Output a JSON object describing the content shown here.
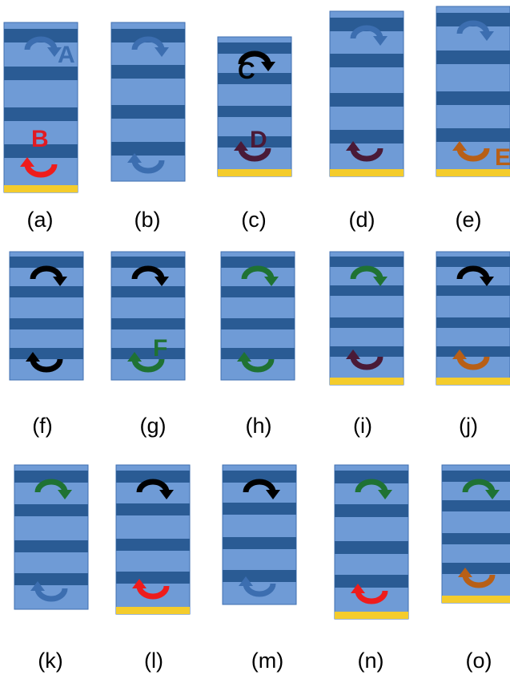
{
  "colors": {
    "light": "#6f9bd6",
    "dark": "#2a5b94",
    "border": "#3f6fb0",
    "substrate": "#f4cc2c",
    "arrow_blue": "#3c6eb0",
    "arrow_red": "#ee1c1c",
    "arrow_black": "#000000",
    "arrow_purple": "#4a1a37",
    "arrow_orange": "#b85f16",
    "arrow_green": "#1f7233",
    "letter_A": "#3c6eb0",
    "letter_B": "#e01b23",
    "letter_C": "#000000",
    "letter_D": "#4a1a37",
    "letter_E": "#b85f16",
    "letter_F": "#1f7233"
  },
  "panels": [
    {
      "caption": "(a)",
      "substrate": true,
      "top_arrow": "blue",
      "bottom_arrow": "red",
      "top_letter": "A",
      "bottom_letter": "B"
    },
    {
      "caption": "(b)",
      "substrate": false,
      "top_arrow": "blue",
      "bottom_arrow": "blue",
      "top_letter": "",
      "bottom_letter": ""
    },
    {
      "caption": "(c)",
      "substrate": true,
      "top_arrow": "black",
      "bottom_arrow": "purple",
      "top_letter": "C",
      "bottom_letter": "D"
    },
    {
      "caption": "(d)",
      "substrate": true,
      "top_arrow": "blue",
      "bottom_arrow": "purple",
      "top_letter": "",
      "bottom_letter": ""
    },
    {
      "caption": "(e)",
      "substrate": true,
      "top_arrow": "blue",
      "bottom_arrow": "orange",
      "top_letter": "",
      "bottom_letter": "E"
    },
    {
      "caption": "(f)",
      "substrate": false,
      "top_arrow": "black",
      "bottom_arrow": "black",
      "top_letter": "",
      "bottom_letter": ""
    },
    {
      "caption": "(g)",
      "substrate": false,
      "top_arrow": "black",
      "bottom_arrow": "green",
      "top_letter": "",
      "bottom_letter": "F"
    },
    {
      "caption": "(h)",
      "substrate": false,
      "top_arrow": "green",
      "bottom_arrow": "green",
      "top_letter": "",
      "bottom_letter": ""
    },
    {
      "caption": "(i)",
      "substrate": true,
      "top_arrow": "green",
      "bottom_arrow": "purple",
      "top_letter": "",
      "bottom_letter": ""
    },
    {
      "caption": "(j)",
      "substrate": true,
      "top_arrow": "black",
      "bottom_arrow": "orange",
      "top_letter": "",
      "bottom_letter": ""
    },
    {
      "caption": "(k)",
      "substrate": false,
      "top_arrow": "green",
      "bottom_arrow": "blue",
      "top_letter": "",
      "bottom_letter": ""
    },
    {
      "caption": "(l)",
      "substrate": true,
      "top_arrow": "black",
      "bottom_arrow": "red",
      "top_letter": "",
      "bottom_letter": ""
    },
    {
      "caption": "(m)",
      "substrate": false,
      "top_arrow": "black",
      "bottom_arrow": "blue",
      "top_letter": "",
      "bottom_letter": ""
    },
    {
      "caption": "(n)",
      "substrate": true,
      "top_arrow": "green",
      "bottom_arrow": "red",
      "top_letter": "",
      "bottom_letter": ""
    },
    {
      "caption": "(o)",
      "substrate": true,
      "top_arrow": "green",
      "bottom_arrow": "orange",
      "top_letter": "",
      "bottom_letter": ""
    }
  ]
}
